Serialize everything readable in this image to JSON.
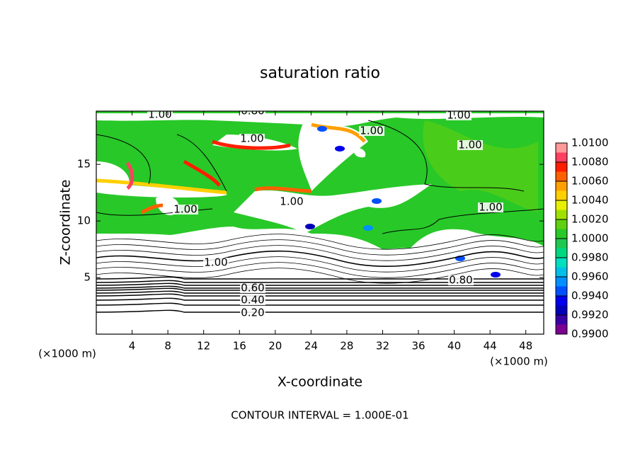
{
  "chart_data": {
    "type": "contour",
    "title": "saturation ratio",
    "x_label": "X-coordinate",
    "y_label": "Z-coordinate",
    "x_unit": "(×1000 m)",
    "footnote": "CONTOUR INTERVAL = 1.000E-01",
    "xlim": [
      0,
      50
    ],
    "xticks": [
      4,
      8,
      12,
      16,
      20,
      24,
      28,
      32,
      36,
      40,
      44,
      48
    ],
    "ylim": [
      0,
      19.7
    ],
    "yticks": [
      5,
      10,
      15
    ],
    "colorbar": {
      "lim": [
        0.99,
        1.01
      ],
      "levels": [
        0.99,
        0.991,
        0.992,
        0.993,
        0.994,
        0.995,
        0.996,
        0.997,
        0.998,
        0.999,
        1.0,
        1.001,
        1.002,
        1.003,
        1.004,
        1.005,
        1.006,
        1.007,
        1.008,
        1.009
      ],
      "colors": [
        "#7a0090",
        "#3a00a8",
        "#0000b8",
        "#0000f0",
        "#0050ff",
        "#0090ff",
        "#00c0e8",
        "#00e0c0",
        "#00d880",
        "#20c850",
        "#28c828",
        "#60d010",
        "#a0e000",
        "#e8f000",
        "#ffd000",
        "#ffa000",
        "#ff6000",
        "#ff1e00",
        "#ff4060",
        "#ff9a9a"
      ],
      "ticks": [
        {
          "value": 0.99,
          "label": "0.9900"
        },
        {
          "value": 0.992,
          "label": "0.9920"
        },
        {
          "value": 0.994,
          "label": "0.9940"
        },
        {
          "value": 0.996,
          "label": "0.9960"
        },
        {
          "value": 0.998,
          "label": "0.9980"
        },
        {
          "value": 1.0,
          "label": "1.0000"
        },
        {
          "value": 1.002,
          "label": "1.0020"
        },
        {
          "value": 1.004,
          "label": "1.0040"
        },
        {
          "value": 1.006,
          "label": "1.0060"
        },
        {
          "value": 1.008,
          "label": "1.0080"
        },
        {
          "value": 1.01,
          "label": "1.0100"
        }
      ]
    },
    "contour_labels": [
      {
        "value": 0.8,
        "label": "0.80"
      },
      {
        "value": 1.0,
        "label": "1.00"
      },
      {
        "value": 1.0,
        "label": "1.00"
      },
      {
        "value": 1.0,
        "label": "1.00"
      },
      {
        "value": 1.0,
        "label": "1.00"
      },
      {
        "value": 1.0,
        "label": "1.00"
      },
      {
        "value": 1.0,
        "label": "1.00"
      },
      {
        "value": 1.0,
        "label": "1.00"
      },
      {
        "value": 1.0,
        "label": "1.00"
      },
      {
        "value": 1.0,
        "label": "1.00"
      },
      {
        "value": 0.8,
        "label": "0.80"
      },
      {
        "value": 0.6,
        "label": "0.60"
      },
      {
        "value": 0.4,
        "label": "0.40"
      },
      {
        "value": 0.2,
        "label": "0.20"
      }
    ]
  }
}
